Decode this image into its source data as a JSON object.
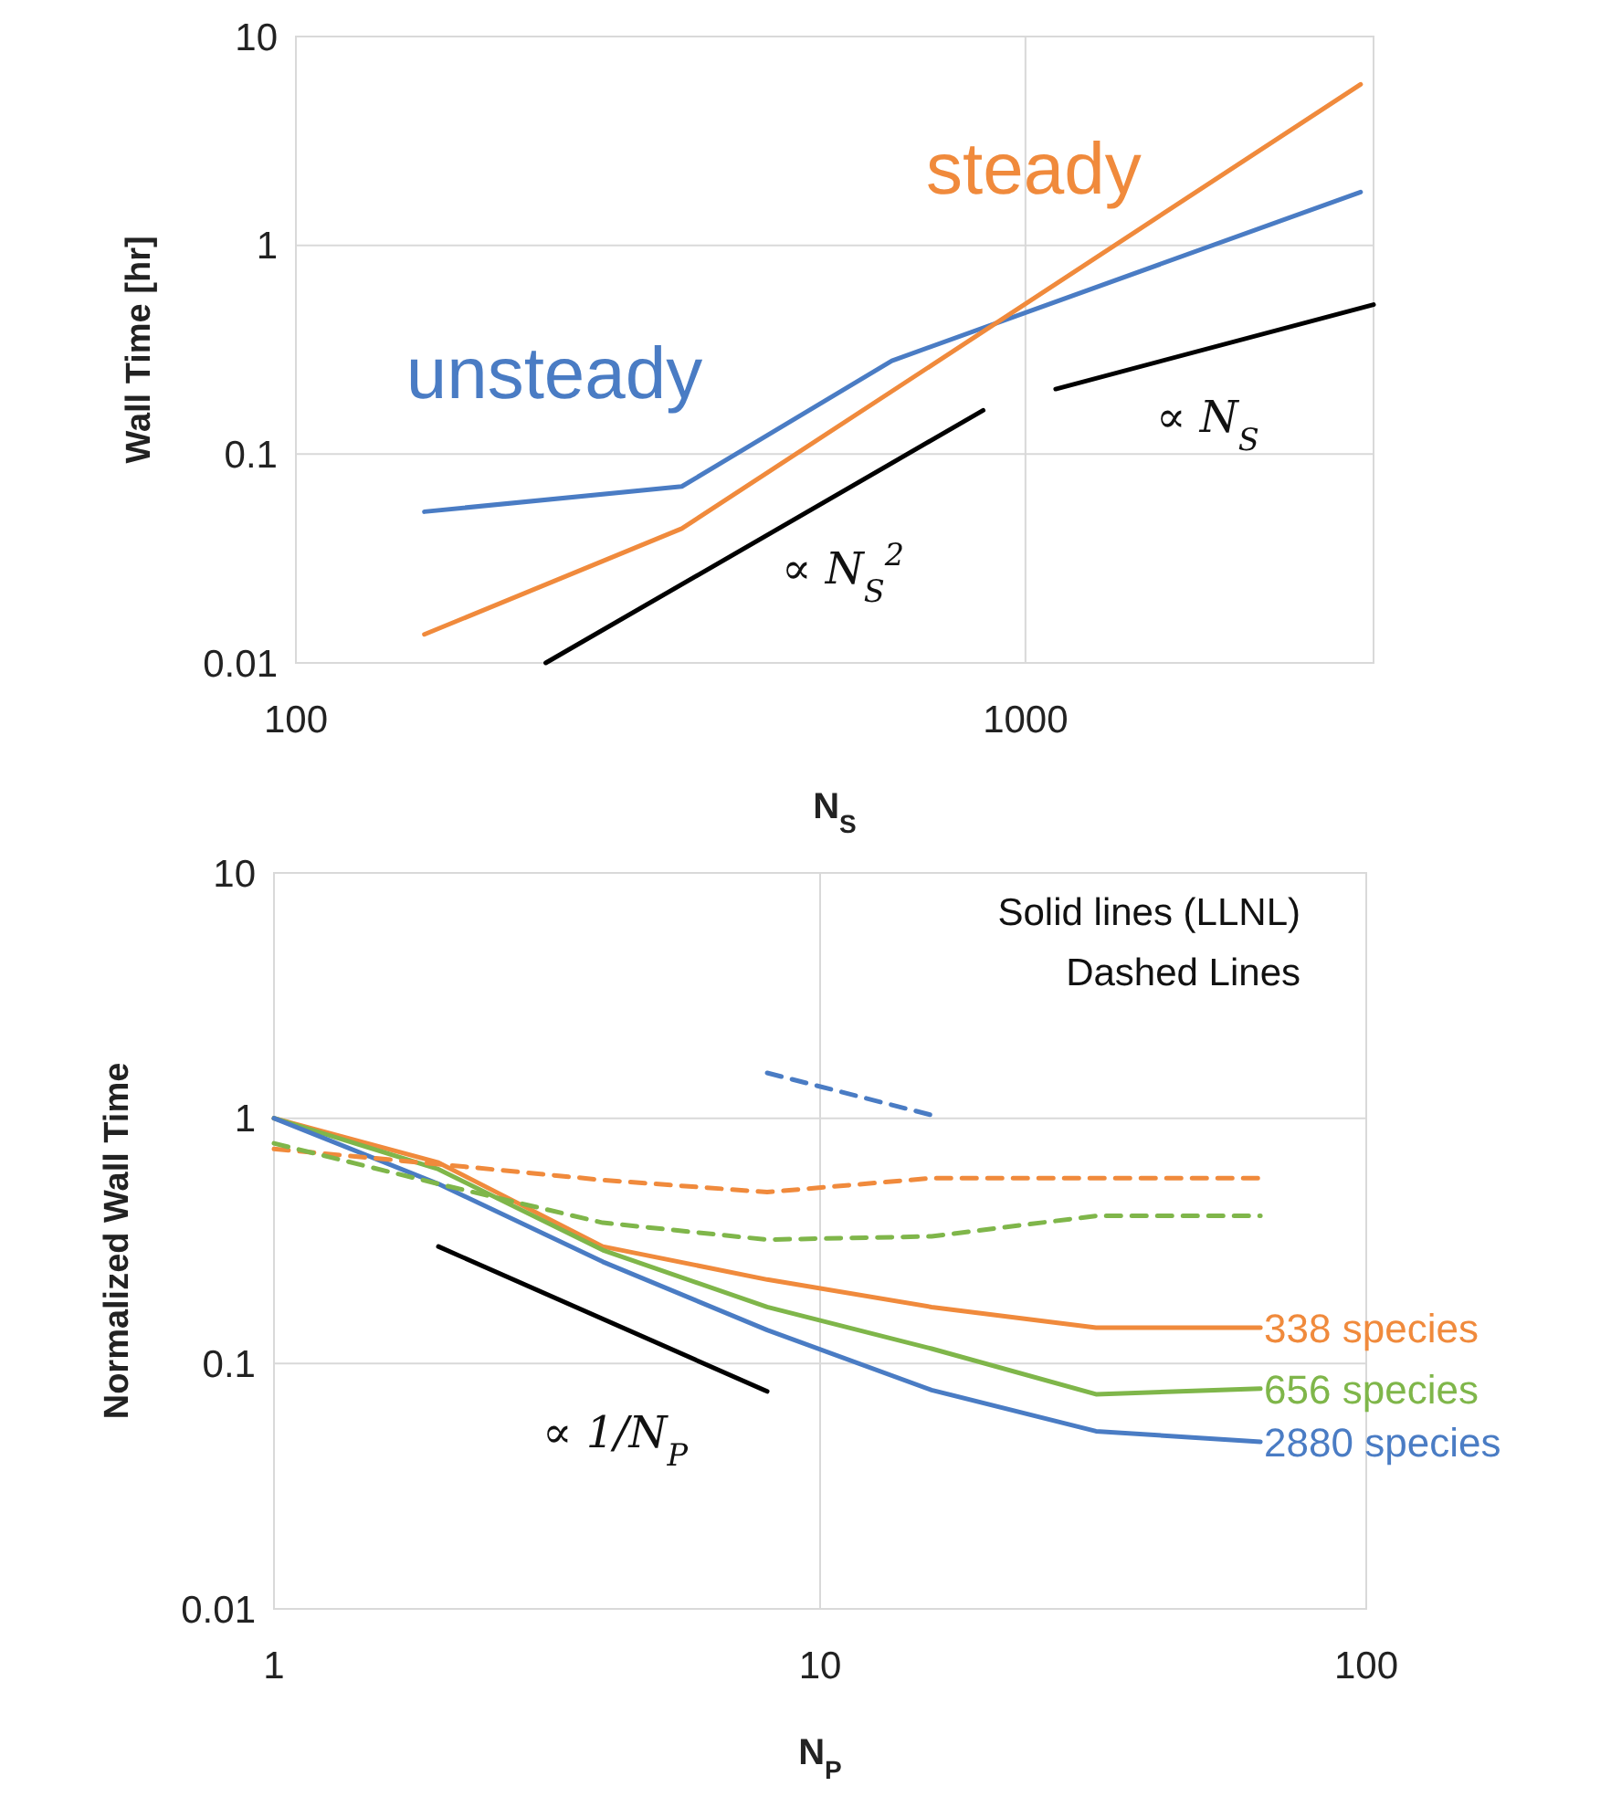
{
  "chart_data": [
    {
      "type": "line",
      "xlabel": "N$_{S}$",
      "ylabel": "Wall Time [hr]",
      "log": "xy",
      "xlim": [
        100,
        3000
      ],
      "ylim": [
        0.01,
        10
      ],
      "xticks": [
        100,
        1000
      ],
      "yticks": [
        0.01,
        0.1,
        1,
        10
      ],
      "grid": true,
      "line_style": "solid",
      "marker": "none",
      "series": [
        {
          "name": "unsteady",
          "color": "#4a7cc4",
          "x": [
            150,
            338,
            656,
            2880
          ],
          "values": [
            0.053,
            0.07,
            0.28,
            1.8
          ]
        },
        {
          "name": "steady",
          "color": "#f08a3c",
          "x": [
            150,
            338,
            656,
            2880
          ],
          "values": [
            0.0137,
            0.044,
            0.2,
            5.9
          ]
        },
        {
          "color": "#000000",
          "x": [
            220,
            875
          ],
          "values": [
            0.01,
            0.162
          ]
        },
        {
          "color": "#000000",
          "x": [
            1100,
            3000
          ],
          "values": [
            0.205,
            0.52
          ]
        }
      ],
      "annotations": [
        "∝ N$_{S}$$^{2}$",
        "∝ N$_{S}$"
      ]
    },
    {
      "type": "line",
      "xlabel": "N$_{P}$",
      "ylabel": "Normalized Wall Time",
      "log": "xy",
      "xlim": [
        1,
        100
      ],
      "ylim": [
        0.01,
        10
      ],
      "xticks": [
        1,
        10,
        100
      ],
      "yticks": [
        0.01,
        0.1,
        1,
        10
      ],
      "grid": true,
      "marker": "none",
      "series": [
        {
          "name": "338 species",
          "color": "#f08a3c",
          "line_style": "solid",
          "x": [
            1,
            2,
            4,
            8,
            16,
            32,
            64
          ],
          "values": [
            1,
            0.66,
            0.3,
            0.22,
            0.17,
            0.14,
            0.14
          ]
        },
        {
          "name": "656 species",
          "color": "#7fb64a",
          "line_style": "solid",
          "x": [
            1,
            2,
            4,
            8,
            16,
            32,
            64
          ],
          "values": [
            1,
            0.62,
            0.29,
            0.17,
            0.115,
            0.075,
            0.079
          ]
        },
        {
          "name": "2880 species",
          "color": "#4a7cc4",
          "line_style": "solid",
          "x": [
            1,
            2,
            4,
            8,
            16,
            32,
            64
          ],
          "values": [
            1,
            0.54,
            0.26,
            0.137,
            0.078,
            0.053,
            0.048
          ]
        },
        {
          "color": "#f08a3c",
          "line_style": "dashed",
          "x": [
            1,
            2,
            4,
            8,
            16,
            32,
            64
          ],
          "values": [
            0.75,
            0.65,
            0.56,
            0.5,
            0.57,
            0.57,
            0.57
          ]
        },
        {
          "color": "#7fb64a",
          "line_style": "dashed",
          "x": [
            1,
            2,
            4,
            8,
            16,
            32,
            64
          ],
          "values": [
            0.79,
            0.54,
            0.375,
            0.32,
            0.33,
            0.4,
            0.4
          ]
        },
        {
          "color": "#4a7cc4",
          "line_style": "dashed",
          "x": [
            8,
            16
          ],
          "values": [
            1.53,
            1.03
          ]
        },
        {
          "color": "#000000",
          "line_style": "solid",
          "x": [
            2,
            8
          ],
          "values": [
            0.3,
            0.077
          ]
        }
      ],
      "annotations": [
        "Solid lines (LLNL)",
        "Dashed Lines",
        "∝ 1/N$_{P}$"
      ]
    }
  ]
}
